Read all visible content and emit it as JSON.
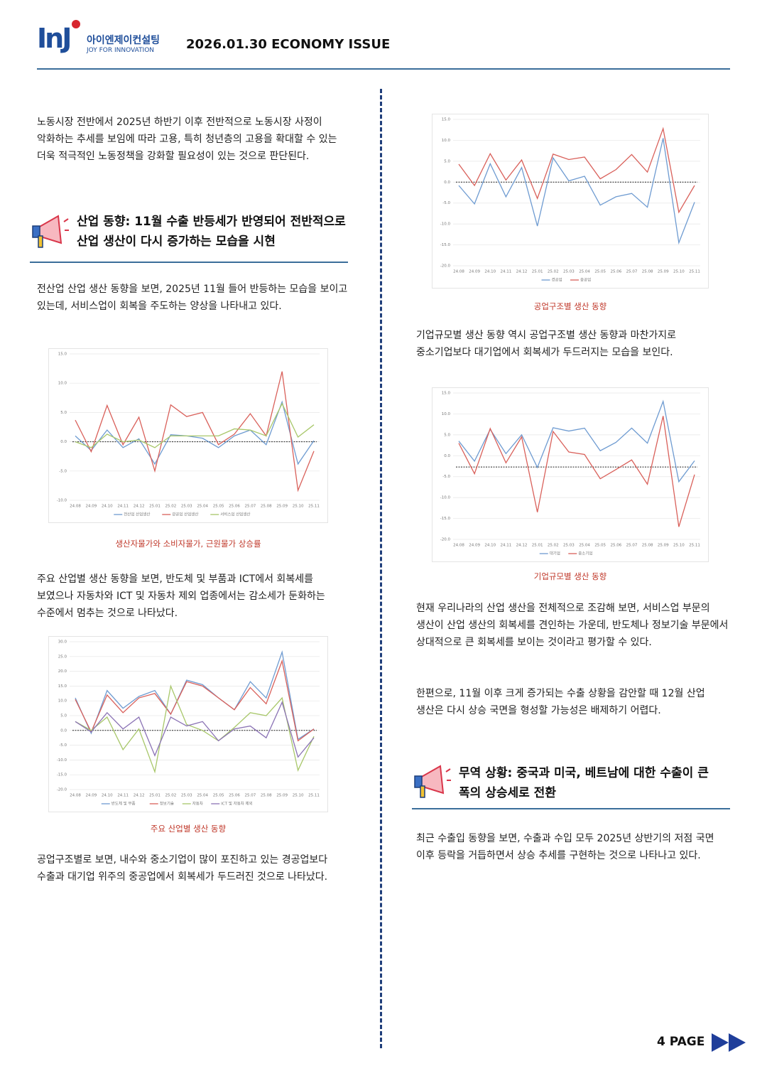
{
  "header": {
    "logo": "InJ",
    "company": "아이엔제이컨설팅",
    "slogan": "JOY FOR INNOVATION",
    "title": "2026.01.30 ECONOMY ISSUE"
  },
  "paragraphs": [
    "노동시장 전반에서 2025년 하반기 이후 전반적으로 노동시장 사정이 악화하는 추세를 보임에 따라 고용, 특히 청년층의 고용을 확대할 수 있는 더욱 적극적인 노동정책을 강화할 필요성이 있는 것으로 판단된다.",
    "전산업 산업 생산 동향을 보면, 2025년 11월 들어 반등하는 모습을 보이고 있는데, 서비스업이 회복을 주도하는 양상을 나타내고 있다.",
    "주요 산업별 생산 동향을 보면, 반도체 및 부품과 ICT에서 회복세를 보였으나 자동차와 ICT 및 자동차 제외 업종에서는 감소세가 둔화하는 수준에서 멈추는 것으로 나타났다.",
    "공업구조별로 보면, 내수와 중소기업이 많이 포진하고 있는 경공업보다 수출과 대기업 위주의 중공업에서 회복세가 두드러진 것으로 나타났다.",
    "기업규모별 생산 동향 역시 공업구조별 생산 동향과 마찬가지로 중소기업보다 대기업에서 회복세가 두드러지는 모습을 보인다.",
    "현재 우리나라의 산업 생산을 전체적으로 조감해 보면, 서비스업 부문의 생산이 산업 생산의 회복세를 견인하는 가운데, 반도체나 정보기술 부문에서 상대적으로 큰 회복세를 보이는 것이라고 평가할 수 있다.",
    "한편으로, 11월 이후 크게 증가되는 수출 상황을 감안할 때 12월 산업 생산은 다시 상승 국면을 형성할 가능성은 배제하기 어렵다.",
    "최근 수출입 동향을 보면, 수출과 수입 모두 2025년 상반기의 저점 국면 이후 등락을 거듭하면서 상승 추세를 구현하는 것으로 나타나고 있다."
  ],
  "headings": [
    "산업 동향: 11월 수출 반등세가 반영되어 전반적으로 산업 생산이 다시 증가하는 모습을 시현",
    "무역 상황: 중국과 미국, 베트남에 대한 수출이 큰 폭의 상승세로 전환"
  ],
  "chart_data": [
    {
      "type": "line",
      "caption": "생산자물가와 소비자물가, 근원물가 상승률",
      "categories": [
        "24.08",
        "24.09",
        "24.10",
        "24.11",
        "24.12",
        "25.01",
        "25.02",
        "25.03",
        "25.04",
        "25.05",
        "25.06",
        "25.07",
        "25.08",
        "25.09",
        "25.10",
        "25.11"
      ],
      "ylim": [
        -10,
        15
      ],
      "yticks": [
        {
          "value": -10,
          "label": "-10.0"
        },
        {
          "value": -5,
          "label": "-5.0"
        },
        {
          "value": 0,
          "label": "0.0"
        },
        {
          "value": 5,
          "label": "5.0"
        },
        {
          "value": 10,
          "label": "10.0"
        },
        {
          "value": 15,
          "label": "15.0"
        }
      ],
      "reference_line": 0,
      "series": [
        {
          "name": "전산업 산업생산",
          "color": "#6e9bd1",
          "values": [
            1.0,
            -1.5,
            2.0,
            -1.0,
            0.5,
            -3.8,
            1.2,
            1.0,
            0.6,
            -1.0,
            1.0,
            2.0,
            -0.5,
            6.8,
            -3.8,
            0.2
          ]
        },
        {
          "name": "광공업 산업생산",
          "color": "#d9605a",
          "values": [
            3.7,
            -1.7,
            6.2,
            -0.5,
            4.2,
            -5.0,
            6.3,
            4.3,
            5.0,
            -0.5,
            1.3,
            4.8,
            1.0,
            12.0,
            -8.3,
            -1.6
          ]
        },
        {
          "name": "서비스업 산업생산",
          "color": "#a8c76a",
          "values": [
            0.0,
            -1.0,
            1.3,
            0.0,
            0.3,
            -1.0,
            1.0,
            1.0,
            1.0,
            1.0,
            2.2,
            2.0,
            1.0,
            6.5,
            0.8,
            2.9
          ]
        }
      ]
    },
    {
      "type": "line",
      "caption": "주요 산업별 생산 동향",
      "categories": [
        "24.08",
        "24.09",
        "24.10",
        "24.11",
        "24.12",
        "25.01",
        "25.02",
        "25.03",
        "25.04",
        "25.05",
        "25.06",
        "25.07",
        "25.08",
        "25.09",
        "25.10",
        "25.11"
      ],
      "ylim": [
        -20,
        30
      ],
      "yticks": [
        {
          "value": -20,
          "label": "-20.0"
        },
        {
          "value": -15,
          "label": "-15.0"
        },
        {
          "value": -10,
          "label": "-10.0"
        },
        {
          "value": -5,
          "label": "-5.0"
        },
        {
          "value": 0,
          "label": "0.0"
        },
        {
          "value": 5,
          "label": "5.0"
        },
        {
          "value": 10,
          "label": "10.0"
        },
        {
          "value": 15,
          "label": "15.0"
        },
        {
          "value": 20,
          "label": "20.0"
        },
        {
          "value": 25,
          "label": "25.0"
        },
        {
          "value": 30,
          "label": "30.0"
        }
      ],
      "reference_line": 0,
      "series": [
        {
          "name": "반도체 및 부품",
          "color": "#6e9bd1",
          "values": [
            11.0,
            -1.0,
            13.5,
            7.5,
            11.5,
            13.5,
            5.5,
            17.0,
            15.5,
            11.0,
            7.0,
            16.5,
            11.0,
            26.5,
            -3.0,
            0.5
          ]
        },
        {
          "name": "정보기술",
          "color": "#d9605a",
          "values": [
            10.5,
            -0.5,
            12.0,
            6.0,
            11.0,
            12.5,
            5.5,
            16.5,
            15.0,
            11.0,
            7.0,
            14.5,
            9.0,
            23.5,
            -3.5,
            0.5
          ]
        },
        {
          "name": "자동차",
          "color": "#a8c76a",
          "values": [
            3.0,
            0.0,
            4.5,
            -6.5,
            0.5,
            -14.0,
            15.0,
            2.0,
            0.0,
            -3.5,
            1.0,
            6.0,
            5.0,
            11.0,
            -13.5,
            -2.0
          ]
        },
        {
          "name": "ICT 및 자동차 제외",
          "color": "#8b73b5",
          "values": [
            3.0,
            -0.5,
            6.0,
            0.5,
            4.5,
            -8.5,
            4.5,
            1.5,
            3.0,
            -3.5,
            0.5,
            1.5,
            -2.5,
            9.5,
            -9.0,
            -2.5
          ]
        }
      ]
    },
    {
      "type": "line",
      "caption": "공업구조별 생산 동향",
      "categories": [
        "24.08",
        "24.09",
        "24.10",
        "24.11",
        "24.12",
        "25.01",
        "25.02",
        "25.03",
        "25.04",
        "25.05",
        "25.06",
        "25.07",
        "25.08",
        "25.09",
        "25.10",
        "25.11"
      ],
      "ylim": [
        -20,
        15
      ],
      "yticks": [
        {
          "value": -20,
          "label": "-20.0"
        },
        {
          "value": -15,
          "label": "-15.0"
        },
        {
          "value": -10,
          "label": "-10.0"
        },
        {
          "value": -5,
          "label": "-5.0"
        },
        {
          "value": 0,
          "label": "0.0"
        },
        {
          "value": 5,
          "label": "5.0"
        },
        {
          "value": 10,
          "label": "10.0"
        },
        {
          "value": 15,
          "label": "15.0"
        }
      ],
      "reference_line": 0,
      "series": [
        {
          "name": "경공업",
          "color": "#6e9bd1",
          "values": [
            -0.8,
            -5.2,
            4.4,
            -3.5,
            3.5,
            -10.5,
            5.8,
            0.3,
            1.4,
            -5.5,
            -3.5,
            -2.7,
            -6.0,
            10.5,
            -14.5,
            -4.8
          ]
        },
        {
          "name": "중공업",
          "color": "#d9605a",
          "values": [
            4.3,
            -0.8,
            6.8,
            0.5,
            5.3,
            -3.9,
            6.7,
            5.4,
            6.0,
            0.8,
            3.0,
            6.6,
            2.4,
            12.8,
            -7.2,
            -0.8
          ]
        }
      ]
    },
    {
      "type": "line",
      "caption": "기업규모별 생산 동향",
      "categories": [
        "24.08",
        "24.09",
        "24.10",
        "24.11",
        "24.12",
        "25.01",
        "25.02",
        "25.03",
        "25.04",
        "25.05",
        "25.06",
        "25.07",
        "25.08",
        "25.09",
        "25.10",
        "25.11"
      ],
      "ylim": [
        -20,
        15
      ],
      "yticks": [
        {
          "value": -20,
          "label": "-20.0"
        },
        {
          "value": -15,
          "label": "-15.0"
        },
        {
          "value": -10,
          "label": "-10.0"
        },
        {
          "value": -5,
          "label": "-5.0"
        },
        {
          "value": 0,
          "label": "0.0"
        },
        {
          "value": 5,
          "label": "5.0"
        },
        {
          "value": 10,
          "label": "10.0"
        },
        {
          "value": 15,
          "label": "15.0"
        }
      ],
      "reference_line": -2.7,
      "series": [
        {
          "name": "대기업",
          "color": "#6e9bd1",
          "values": [
            3.5,
            -1.3,
            6.3,
            0.5,
            5.0,
            -2.8,
            6.7,
            5.9,
            6.6,
            1.2,
            3.2,
            6.6,
            3.0,
            13.0,
            -6.2,
            -1.2
          ]
        },
        {
          "name": "중소기업",
          "color": "#d9605a",
          "values": [
            3.0,
            -4.3,
            6.5,
            -1.7,
            4.5,
            -13.5,
            5.8,
            0.9,
            0.3,
            -5.5,
            -3.3,
            -1.0,
            -6.8,
            9.5,
            -17.0,
            -4.5
          ]
        }
      ]
    }
  ],
  "footer": {
    "page": "4 PAGE"
  }
}
